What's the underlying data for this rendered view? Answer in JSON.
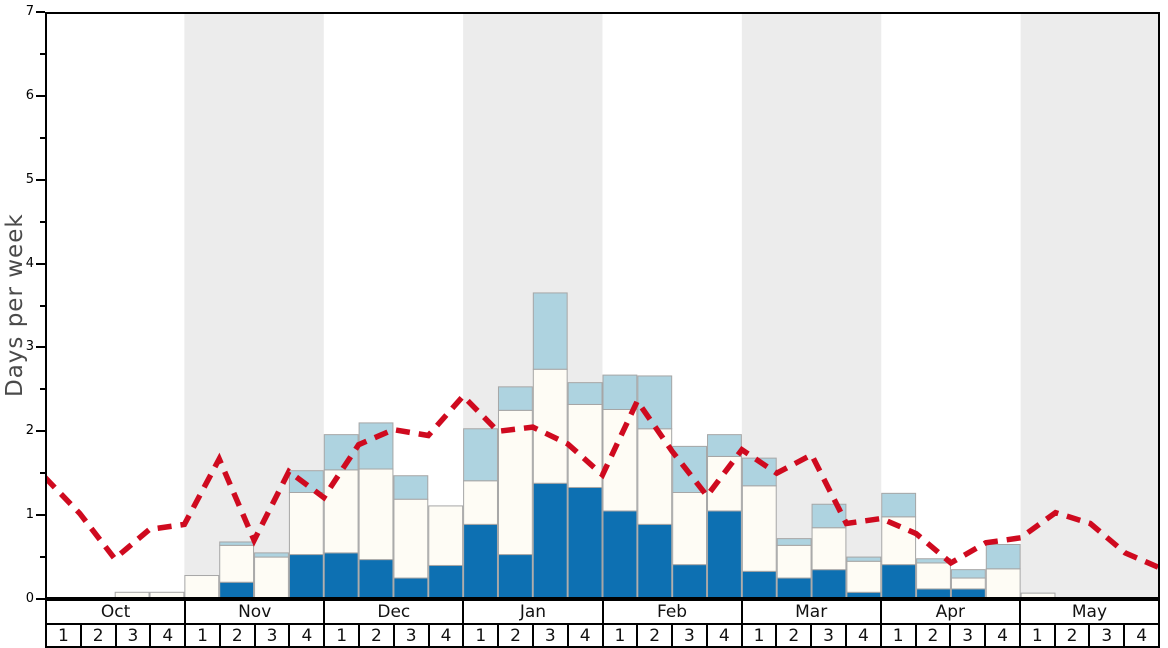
{
  "chart_data": {
    "type": "stacked_bar_with_dashed_line",
    "title": "",
    "ylabel": "Days per week",
    "xlabel": "",
    "ylim": [
      0,
      7
    ],
    "y_major_ticks": [
      "0",
      "1",
      "2",
      "3",
      "4",
      "5",
      "6",
      "7"
    ],
    "y_minor_step": 0.5,
    "grid": "off",
    "legend": "none",
    "months": [
      "Oct",
      "Nov",
      "Dec",
      "Jan",
      "Feb",
      "Mar",
      "Apr",
      "May"
    ],
    "week_numbers": [
      "1",
      "2",
      "3",
      "4"
    ],
    "shaded_month_indices": [
      1,
      3,
      5,
      7
    ],
    "categories": [
      "Oct-1",
      "Oct-2",
      "Oct-3",
      "Oct-4",
      "Nov-1",
      "Nov-2",
      "Nov-3",
      "Nov-4",
      "Dec-1",
      "Dec-2",
      "Dec-3",
      "Dec-4",
      "Jan-1",
      "Jan-2",
      "Jan-3",
      "Jan-4",
      "Feb-1",
      "Feb-2",
      "Feb-3",
      "Feb-4",
      "Mar-1",
      "Mar-2",
      "Mar-3",
      "Mar-4",
      "Apr-1",
      "Apr-2",
      "Apr-3",
      "Apr-4",
      "May-1",
      "May-2",
      "May-3",
      "May-4"
    ],
    "series": [
      {
        "name": "dark_blue_segment",
        "stack_position": "bottom",
        "values": [
          0,
          0,
          0,
          0,
          0,
          0.2,
          0,
          0.53,
          0.55,
          0.47,
          0.25,
          0.4,
          0.89,
          0.53,
          1.38,
          1.33,
          1.05,
          0.89,
          0.41,
          1.05,
          0.33,
          0.25,
          0.35,
          0.08,
          0.41,
          0.12,
          0.12,
          0,
          0,
          0,
          0,
          0
        ]
      },
      {
        "name": "white_segment",
        "stack_position": "middle",
        "values": [
          0,
          0,
          0.08,
          0.08,
          0.28,
          0.44,
          0.5,
          0.74,
          0.99,
          1.08,
          0.94,
          0.71,
          0.52,
          1.72,
          1.36,
          0.99,
          1.21,
          1.14,
          0.86,
          0.65,
          1.02,
          0.39,
          0.5,
          0.37,
          0.57,
          0.31,
          0.13,
          0.36,
          0.07,
          0,
          0,
          0
        ]
      },
      {
        "name": "light_blue_segment",
        "stack_position": "top",
        "values": [
          0,
          0,
          0,
          0,
          0,
          0.04,
          0.05,
          0.26,
          0.42,
          0.55,
          0.28,
          0,
          0.62,
          0.28,
          0.91,
          0.26,
          0.41,
          0.63,
          0.55,
          0.26,
          0.33,
          0.08,
          0.28,
          0.05,
          0.28,
          0.05,
          0.1,
          0.29,
          0,
          0,
          0,
          0
        ]
      }
    ],
    "overlay_line": {
      "name": "red_dashed_trend",
      "style": "dashed",
      "x_positions": "week_boundaries_0_to_32",
      "values": [
        1.45,
        1.02,
        0.48,
        0.83,
        0.89,
        1.67,
        0.7,
        1.52,
        1.21,
        1.84,
        2.02,
        1.95,
        2.42,
        2.0,
        2.05,
        1.85,
        1.48,
        2.36,
        1.76,
        1.23,
        1.78,
        1.5,
        1.72,
        0.9,
        0.96,
        0.78,
        0.43,
        0.67,
        0.73,
        1.03,
        0.9,
        0.55,
        0.37
      ]
    },
    "colors": {
      "dark_blue": "#0d70b2",
      "light_blue": "#aed3e0",
      "bar_white": "#fefcf5",
      "band_gray": "#ececec",
      "line_red": "#cf0a1f",
      "bar_border": "#a6a6a6",
      "axis": "#000000",
      "ylabel_text": "#4a4a4a"
    }
  }
}
